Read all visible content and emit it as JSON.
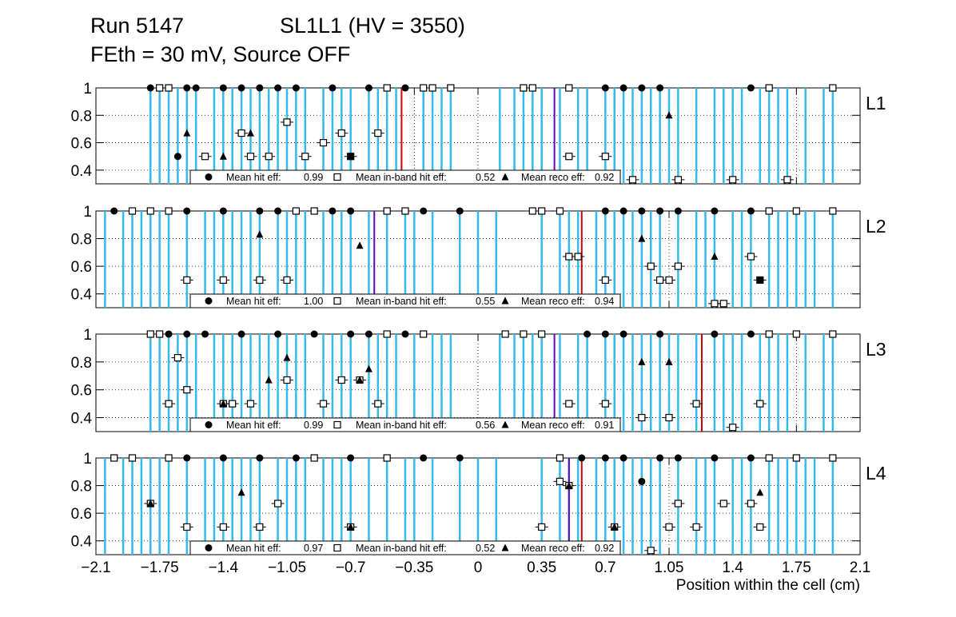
{
  "title": {
    "run": "Run 5147",
    "chamber": "SL1L1 (HV = 3550)",
    "conditions": "FEth = 30 mV, Source OFF"
  },
  "colors": {
    "wire_line": "#33bbee",
    "red_line": "#cc0000",
    "purple_line": "#6600bb",
    "markers": "#000000",
    "grid": "#000000"
  },
  "chart_data": {
    "type": "scatter",
    "xlabel": "Position within the cell (cm)",
    "xlim": [
      -2.1,
      2.1
    ],
    "xticks": [
      "−2.1",
      "−1.75",
      "−1.4",
      "−1.05",
      "−0.7",
      "−0.35",
      "0",
      "0.35",
      "0.7",
      "1.05",
      "1.4",
      "1.75",
      "2.1"
    ],
    "xtick_values": [
      -2.1,
      -1.75,
      -1.4,
      -1.05,
      -0.7,
      -0.35,
      0,
      0.35,
      0.7,
      1.05,
      1.4,
      1.75,
      2.1
    ],
    "ylim": [
      0.3,
      1.0
    ],
    "yticks": [
      "0.4",
      "0.6",
      "0.8",
      "1"
    ],
    "ytick_values": [
      0.4,
      0.6,
      0.8,
      1.0
    ],
    "legend_labels": [
      "Mean hit  eff:",
      "Mean in-band hit eff:",
      "Mean reco eff:"
    ],
    "panels": [
      {
        "layer": "L1",
        "mean_hit_eff": "0.99",
        "mean_inband_eff": "0.52",
        "mean_reco_eff": "0.92",
        "red_line": -0.42,
        "purple_line": 0.42,
        "lines": [
          -1.8,
          -1.75,
          -1.7,
          -1.65,
          -1.6,
          -1.55,
          -1.45,
          -1.4,
          -1.35,
          -1.3,
          -1.25,
          -1.2,
          -1.15,
          -1.1,
          -1.05,
          -1.0,
          -0.95,
          -0.85,
          -0.8,
          -0.75,
          -0.7,
          -0.6,
          -0.55,
          -0.5,
          -0.45,
          -0.3,
          -0.25,
          -0.2,
          -0.15,
          0.12,
          0.2,
          0.25,
          0.3,
          0.35,
          0.45,
          0.55,
          0.6,
          0.7,
          0.75,
          0.8,
          0.85,
          0.9,
          0.95,
          1.0,
          1.05,
          1.1,
          1.2,
          1.3,
          1.35,
          1.4,
          1.45,
          1.55,
          1.6,
          1.65,
          1.7,
          1.8,
          1.9,
          1.95
        ],
        "hit": [
          [
            -1.8,
            1.0
          ],
          [
            -1.6,
            1.0
          ],
          [
            -1.55,
            1.0
          ],
          [
            -1.65,
            0.5
          ],
          [
            -1.4,
            1.0
          ],
          [
            -1.3,
            1.0
          ],
          [
            -1.2,
            1.0
          ],
          [
            -1.1,
            1.0
          ],
          [
            -1.0,
            1.0
          ],
          [
            -0.8,
            1.0
          ],
          [
            -0.6,
            1.0
          ],
          [
            -0.4,
            1.0
          ],
          [
            -0.7,
            0.5
          ],
          [
            0.7,
            1.0
          ],
          [
            0.8,
            1.0
          ],
          [
            0.9,
            1.0
          ],
          [
            1.0,
            1.0
          ],
          [
            1.5,
            1.0
          ]
        ],
        "inband": [
          [
            -1.75,
            1.0
          ],
          [
            -1.7,
            1.0
          ],
          [
            -1.5,
            0.5
          ],
          [
            -1.3,
            0.67
          ],
          [
            -1.25,
            0.5
          ],
          [
            -1.15,
            0.5
          ],
          [
            -1.05,
            0.75
          ],
          [
            -0.95,
            0.5
          ],
          [
            -0.85,
            0.6
          ],
          [
            -0.75,
            0.67
          ],
          [
            -0.7,
            0.5
          ],
          [
            -0.55,
            0.67
          ],
          [
            -0.5,
            1.0
          ],
          [
            -0.3,
            1.0
          ],
          [
            -0.25,
            1.0
          ],
          [
            -0.15,
            1.0
          ],
          [
            0.25,
            1.0
          ],
          [
            0.3,
            1.0
          ],
          [
            0.5,
            1.0
          ],
          [
            0.5,
            0.5
          ],
          [
            0.7,
            0.5
          ],
          [
            0.85,
            0.33
          ],
          [
            1.1,
            0.33
          ],
          [
            1.4,
            0.33
          ],
          [
            1.7,
            0.33
          ],
          [
            1.6,
            1.0
          ],
          [
            1.95,
            1.0
          ]
        ],
        "reco": [
          [
            -1.6,
            0.67
          ],
          [
            -1.4,
            0.5
          ],
          [
            -1.25,
            0.67
          ],
          [
            -0.7,
            0.5
          ],
          [
            1.05,
            0.8
          ]
        ]
      },
      {
        "layer": "L2",
        "mean_hit_eff": "1.00",
        "mean_inband_eff": "0.55",
        "mean_reco_eff": "0.94",
        "red_line": 0.57,
        "purple_line": -0.57,
        "lines": [
          -2.05,
          -1.95,
          -1.9,
          -1.85,
          -1.8,
          -1.75,
          -1.7,
          -1.6,
          -1.5,
          -1.45,
          -1.4,
          -1.35,
          -1.3,
          -1.25,
          -1.2,
          -1.1,
          -1.05,
          -1.0,
          -0.95,
          -0.85,
          -0.8,
          -0.75,
          -0.7,
          -0.6,
          -0.5,
          -0.4,
          -0.35,
          -0.25,
          -0.1,
          0.0,
          0.1,
          0.35,
          0.45,
          0.5,
          0.55,
          0.65,
          0.7,
          0.75,
          0.8,
          0.85,
          0.9,
          0.95,
          1.0,
          1.1,
          1.2,
          1.25,
          1.3,
          1.4,
          1.45,
          1.5,
          1.6,
          1.65,
          1.7,
          1.75,
          1.8,
          1.85,
          1.95
        ],
        "hit": [
          [
            -2.0,
            1.0
          ],
          [
            -1.6,
            1.0
          ],
          [
            -1.4,
            1.0
          ],
          [
            -1.2,
            1.0
          ],
          [
            -1.1,
            1.0
          ],
          [
            -0.8,
            1.0
          ],
          [
            -0.7,
            1.0
          ],
          [
            -0.3,
            1.0
          ],
          [
            -0.1,
            1.0
          ],
          [
            0.7,
            1.0
          ],
          [
            0.8,
            1.0
          ],
          [
            0.9,
            1.0
          ],
          [
            1.0,
            1.0
          ],
          [
            1.1,
            1.0
          ],
          [
            1.3,
            1.0
          ],
          [
            1.5,
            1.0
          ],
          [
            1.55,
            0.5
          ]
        ],
        "inband": [
          [
            -1.9,
            1.0
          ],
          [
            -1.8,
            1.0
          ],
          [
            -1.7,
            1.0
          ],
          [
            -1.6,
            0.5
          ],
          [
            -1.4,
            0.5
          ],
          [
            -1.2,
            0.5
          ],
          [
            -1.05,
            0.5
          ],
          [
            -1.0,
            1.0
          ],
          [
            -0.9,
            1.0
          ],
          [
            -0.5,
            1.0
          ],
          [
            -0.4,
            1.0
          ],
          [
            0.3,
            1.0
          ],
          [
            0.35,
            1.0
          ],
          [
            0.45,
            1.0
          ],
          [
            0.5,
            0.67
          ],
          [
            0.55,
            0.67
          ],
          [
            0.7,
            0.5
          ],
          [
            0.95,
            0.6
          ],
          [
            1.0,
            0.5
          ],
          [
            1.05,
            0.5
          ],
          [
            1.1,
            0.6
          ],
          [
            1.3,
            0.33
          ],
          [
            1.35,
            0.33
          ],
          [
            1.5,
            0.67
          ],
          [
            1.55,
            0.5
          ],
          [
            1.6,
            1.0
          ],
          [
            1.75,
            1.0
          ],
          [
            1.95,
            1.0
          ]
        ],
        "reco": [
          [
            -1.2,
            0.83
          ],
          [
            -0.65,
            0.75
          ],
          [
            0.9,
            0.8
          ],
          [
            1.3,
            0.67
          ],
          [
            1.55,
            0.5
          ]
        ]
      },
      {
        "layer": "L3",
        "mean_hit_eff": "0.99",
        "mean_inband_eff": "0.56",
        "mean_reco_eff": "0.91",
        "red_line": 1.23,
        "purple_line": 0.42,
        "lines": [
          -1.8,
          -1.75,
          -1.7,
          -1.65,
          -1.6,
          -1.55,
          -1.45,
          -1.4,
          -1.35,
          -1.3,
          -1.25,
          -1.2,
          -1.15,
          -1.1,
          -1.05,
          -1.0,
          -0.95,
          -0.85,
          -0.8,
          -0.75,
          -0.7,
          -0.6,
          -0.55,
          -0.5,
          -0.45,
          -0.35,
          -0.25,
          -0.2,
          -0.15,
          0.12,
          0.2,
          0.25,
          0.3,
          0.35,
          0.45,
          0.55,
          0.6,
          0.7,
          0.75,
          0.8,
          0.85,
          0.9,
          0.95,
          1.0,
          1.05,
          1.1,
          1.2,
          1.3,
          1.35,
          1.4,
          1.45,
          1.55,
          1.6,
          1.65,
          1.7,
          1.8,
          1.9,
          1.95
        ],
        "hit": [
          [
            -1.7,
            1.0
          ],
          [
            -1.6,
            1.0
          ],
          [
            -1.5,
            1.0
          ],
          [
            -1.3,
            1.0
          ],
          [
            -1.1,
            1.0
          ],
          [
            -0.9,
            1.0
          ],
          [
            -0.7,
            1.0
          ],
          [
            -0.6,
            1.0
          ],
          [
            -0.4,
            1.0
          ],
          [
            0.6,
            1.0
          ],
          [
            0.7,
            1.0
          ],
          [
            0.8,
            1.0
          ],
          [
            1.0,
            1.0
          ],
          [
            1.3,
            1.0
          ],
          [
            1.5,
            1.0
          ]
        ],
        "inband": [
          [
            -1.8,
            1.0
          ],
          [
            -1.75,
            1.0
          ],
          [
            -1.7,
            0.5
          ],
          [
            -1.65,
            0.83
          ],
          [
            -1.6,
            0.6
          ],
          [
            -1.4,
            0.5
          ],
          [
            -1.35,
            0.5
          ],
          [
            -1.25,
            0.5
          ],
          [
            -1.05,
            0.67
          ],
          [
            -0.85,
            0.5
          ],
          [
            -0.75,
            0.67
          ],
          [
            -0.65,
            0.67
          ],
          [
            -0.55,
            0.5
          ],
          [
            -0.5,
            1.0
          ],
          [
            -0.3,
            1.0
          ],
          [
            0.15,
            1.0
          ],
          [
            0.25,
            1.0
          ],
          [
            0.35,
            1.0
          ],
          [
            0.5,
            0.5
          ],
          [
            0.7,
            0.5
          ],
          [
            0.9,
            0.4
          ],
          [
            1.05,
            0.4
          ],
          [
            1.2,
            0.5
          ],
          [
            1.4,
            0.33
          ],
          [
            1.55,
            0.5
          ],
          [
            1.6,
            1.0
          ],
          [
            1.75,
            1.0
          ],
          [
            1.95,
            1.0
          ]
        ],
        "reco": [
          [
            -1.4,
            0.5
          ],
          [
            -1.15,
            0.67
          ],
          [
            -1.05,
            0.83
          ],
          [
            -0.65,
            0.67
          ],
          [
            -0.6,
            0.75
          ],
          [
            0.9,
            0.8
          ],
          [
            1.05,
            0.8
          ]
        ]
      },
      {
        "layer": "L4",
        "mean_hit_eff": "0.97",
        "mean_inband_eff": "0.52",
        "mean_reco_eff": "0.92",
        "red_line": 0.57,
        "purple_line": 0.5,
        "lines": [
          -2.05,
          -1.95,
          -1.9,
          -1.85,
          -1.8,
          -1.75,
          -1.7,
          -1.6,
          -1.5,
          -1.45,
          -1.4,
          -1.35,
          -1.3,
          -1.25,
          -1.2,
          -1.1,
          -1.05,
          -1.0,
          -0.95,
          -0.85,
          -0.8,
          -0.75,
          -0.7,
          -0.6,
          -0.5,
          -0.4,
          -0.35,
          -0.25,
          -0.1,
          0.0,
          0.1,
          0.35,
          0.45,
          0.5,
          0.55,
          0.65,
          0.7,
          0.75,
          0.8,
          0.85,
          0.9,
          0.95,
          1.0,
          1.1,
          1.2,
          1.25,
          1.3,
          1.4,
          1.45,
          1.5,
          1.6,
          1.65,
          1.7,
          1.75,
          1.8,
          1.85,
          1.95
        ],
        "hit": [
          [
            -1.6,
            1.0
          ],
          [
            -1.4,
            1.0
          ],
          [
            -1.2,
            1.0
          ],
          [
            -1.0,
            1.0
          ],
          [
            -0.7,
            1.0
          ],
          [
            -0.3,
            1.0
          ],
          [
            -0.1,
            1.0
          ],
          [
            0.57,
            1.0
          ],
          [
            0.7,
            1.0
          ],
          [
            0.8,
            1.0
          ],
          [
            0.9,
            0.83
          ],
          [
            1.0,
            1.0
          ],
          [
            1.1,
            1.0
          ],
          [
            1.3,
            1.0
          ],
          [
            1.5,
            1.0
          ]
        ],
        "inband": [
          [
            -2.0,
            1.0
          ],
          [
            -1.9,
            1.0
          ],
          [
            -1.8,
            0.67
          ],
          [
            -1.7,
            1.0
          ],
          [
            -1.6,
            0.5
          ],
          [
            -1.4,
            0.5
          ],
          [
            -1.2,
            0.5
          ],
          [
            -1.1,
            0.67
          ],
          [
            -0.9,
            1.0
          ],
          [
            -0.7,
            0.5
          ],
          [
            -0.5,
            1.0
          ],
          [
            0.35,
            0.5
          ],
          [
            0.45,
            1.0
          ],
          [
            0.45,
            0.83
          ],
          [
            0.5,
            0.8
          ],
          [
            0.75,
            0.5
          ],
          [
            0.95,
            0.33
          ],
          [
            1.05,
            0.5
          ],
          [
            1.1,
            0.67
          ],
          [
            1.2,
            0.5
          ],
          [
            1.35,
            0.67
          ],
          [
            1.5,
            0.67
          ],
          [
            1.55,
            0.5
          ],
          [
            1.6,
            1.0
          ],
          [
            1.75,
            1.0
          ],
          [
            1.95,
            1.0
          ]
        ],
        "reco": [
          [
            -1.8,
            0.67
          ],
          [
            -1.3,
            0.75
          ],
          [
            -0.7,
            0.5
          ],
          [
            0.5,
            0.8
          ],
          [
            0.75,
            0.5
          ],
          [
            1.55,
            0.75
          ]
        ]
      }
    ]
  }
}
